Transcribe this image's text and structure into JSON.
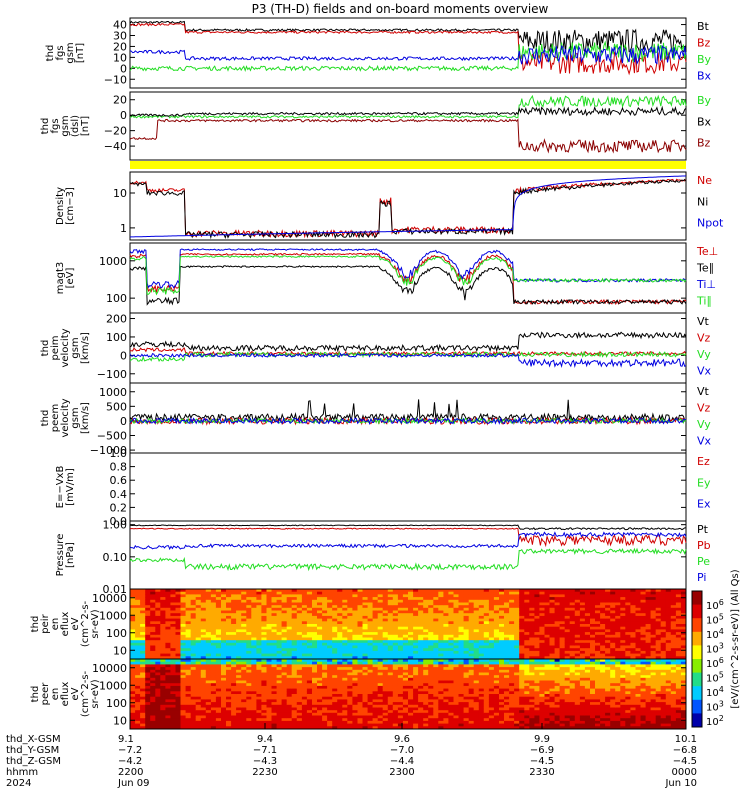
{
  "title": "P3 (TH-D) fields and on-board moments overview",
  "colors": {
    "black": "#000000",
    "red": "#d00000",
    "darkred": "#8b0000",
    "blue": "#0000e0",
    "green": "#22dd22",
    "yellow": "#ffff00"
  },
  "chart_data": [
    {
      "type": "line",
      "ylabel": [
        "thd",
        "fgs",
        "gsm",
        "[nT]"
      ],
      "yticks": [
        "40",
        "30",
        "20",
        "10",
        "0",
        "−10"
      ],
      "ylim": [
        -18,
        46
      ],
      "series": [
        {
          "name": "Bt",
          "color": "black"
        },
        {
          "name": "Bz",
          "color": "red"
        },
        {
          "name": "By",
          "color": "green"
        },
        {
          "name": "Bx",
          "color": "blue"
        }
      ]
    },
    {
      "type": "line",
      "ylabel": [
        "thd",
        "fgs",
        "gsm",
        "(dsl)",
        "[nT]"
      ],
      "yticks": [
        "20",
        "0",
        "−20",
        "−40"
      ],
      "ylim": [
        -58,
        30
      ],
      "series": [
        {
          "name": "By",
          "color": "green"
        },
        {
          "name": "Bx",
          "color": "black"
        },
        {
          "name": "Bz",
          "color": "darkred"
        }
      ]
    },
    {
      "type": "line",
      "ylabel": [
        "Density",
        "[cm−3]"
      ],
      "yticks": [
        "10",
        "1"
      ],
      "scale": "log",
      "ylim": [
        0.45,
        40
      ],
      "series": [
        {
          "name": "Ne",
          "color": "red"
        },
        {
          "name": "Ni",
          "color": "black"
        },
        {
          "name": "Npot",
          "color": "blue"
        }
      ]
    },
    {
      "type": "line",
      "ylabel": [
        "magt3",
        "[eV]"
      ],
      "yticks": [
        "1000",
        "100"
      ],
      "scale": "log",
      "ylim": [
        40,
        3000
      ],
      "series": [
        {
          "name": "Te⊥",
          "color": "red"
        },
        {
          "name": "Te∥",
          "color": "black"
        },
        {
          "name": "Ti⊥",
          "color": "blue"
        },
        {
          "name": "Ti∥",
          "color": "green"
        }
      ]
    },
    {
      "type": "line",
      "ylabel": [
        "thd",
        "peim",
        "velocity",
        "gsm",
        "[km/s]"
      ],
      "yticks": [
        "200",
        "100",
        "0",
        "−100"
      ],
      "ylim": [
        -150,
        230
      ],
      "series": [
        {
          "name": "Vt",
          "color": "black"
        },
        {
          "name": "Vz",
          "color": "red"
        },
        {
          "name": "Vy",
          "color": "green"
        },
        {
          "name": "Vx",
          "color": "blue"
        }
      ]
    },
    {
      "type": "line",
      "ylabel": [
        "thd",
        "peem",
        "velocity",
        "gsm",
        "[km/s]"
      ],
      "yticks": [
        "1000",
        "500",
        "0",
        "−500",
        "−1000"
      ],
      "ylim": [
        -1100,
        1300
      ],
      "series": [
        {
          "name": "Vt",
          "color": "black"
        },
        {
          "name": "Vz",
          "color": "red"
        },
        {
          "name": "Vy",
          "color": "green"
        },
        {
          "name": "Vx",
          "color": "blue"
        }
      ]
    },
    {
      "type": "line",
      "ylabel": [
        "E=−VxB",
        "[mV/m]"
      ],
      "yticks": [
        "1.0",
        "0.8",
        "0.6",
        "0.4",
        "0.2",
        "0.0"
      ],
      "ylim": [
        0,
        1
      ],
      "series": [
        {
          "name": "Ez",
          "color": "red"
        },
        {
          "name": "Ey",
          "color": "green"
        },
        {
          "name": "Ex",
          "color": "blue"
        }
      ]
    },
    {
      "type": "line",
      "ylabel": [
        "Pressure",
        "[nPa]"
      ],
      "yticks": [
        "1.00",
        "0.10",
        "0.01"
      ],
      "scale": "log",
      "ylim": [
        0.01,
        1.3
      ],
      "series": [
        {
          "name": "Pt",
          "color": "black"
        },
        {
          "name": "Pb",
          "color": "red"
        },
        {
          "name": "Pe",
          "color": "green"
        },
        {
          "name": "Pi",
          "color": "blue"
        }
      ]
    },
    {
      "type": "heatmap",
      "ylabel": [
        "thd",
        "peir",
        "en",
        "eflux",
        "eV",
        "(cm^2-s-",
        "sr-eV)"
      ],
      "yticks": [
        "10000",
        "1000",
        "100",
        "10"
      ]
    },
    {
      "type": "heatmap",
      "ylabel": [
        "thd",
        "peer",
        "en",
        "eflux",
        "eV",
        "(cm^2-s-",
        "sr-eV)"
      ],
      "yticks": [
        "10000",
        "1000",
        "100",
        "10"
      ]
    }
  ],
  "colorbar": {
    "ticks": [
      "10^6",
      "10^5",
      "10^4",
      "10^3",
      "10^6",
      "10^5",
      "10^4",
      "10^3",
      "10^2"
    ],
    "label": "[eV/(cm^2-s-sr-eV)] (All Qs)"
  },
  "xaxis": {
    "rows": [
      {
        "label": "thd_X-GSM",
        "values": [
          "9.1",
          "9.4",
          "9.6",
          "9.9",
          "10.1"
        ]
      },
      {
        "label": "thd_Y-GSM",
        "values": [
          "−7.2",
          "−7.1",
          "−7.0",
          "−6.9",
          "−6.8"
        ]
      },
      {
        "label": "thd_Z-GSM",
        "values": [
          "−4.2",
          "−4.3",
          "−4.4",
          "−4.5",
          "−4.5"
        ]
      },
      {
        "label": "hhmm",
        "values": [
          "2200",
          "2230",
          "2300",
          "2330",
          "0000"
        ]
      },
      {
        "label": "2024",
        "values": [
          "Jun 09",
          "",
          "",
          "",
          "Jun 10"
        ]
      }
    ],
    "middle_labels": [
      "−4.4"
    ]
  }
}
